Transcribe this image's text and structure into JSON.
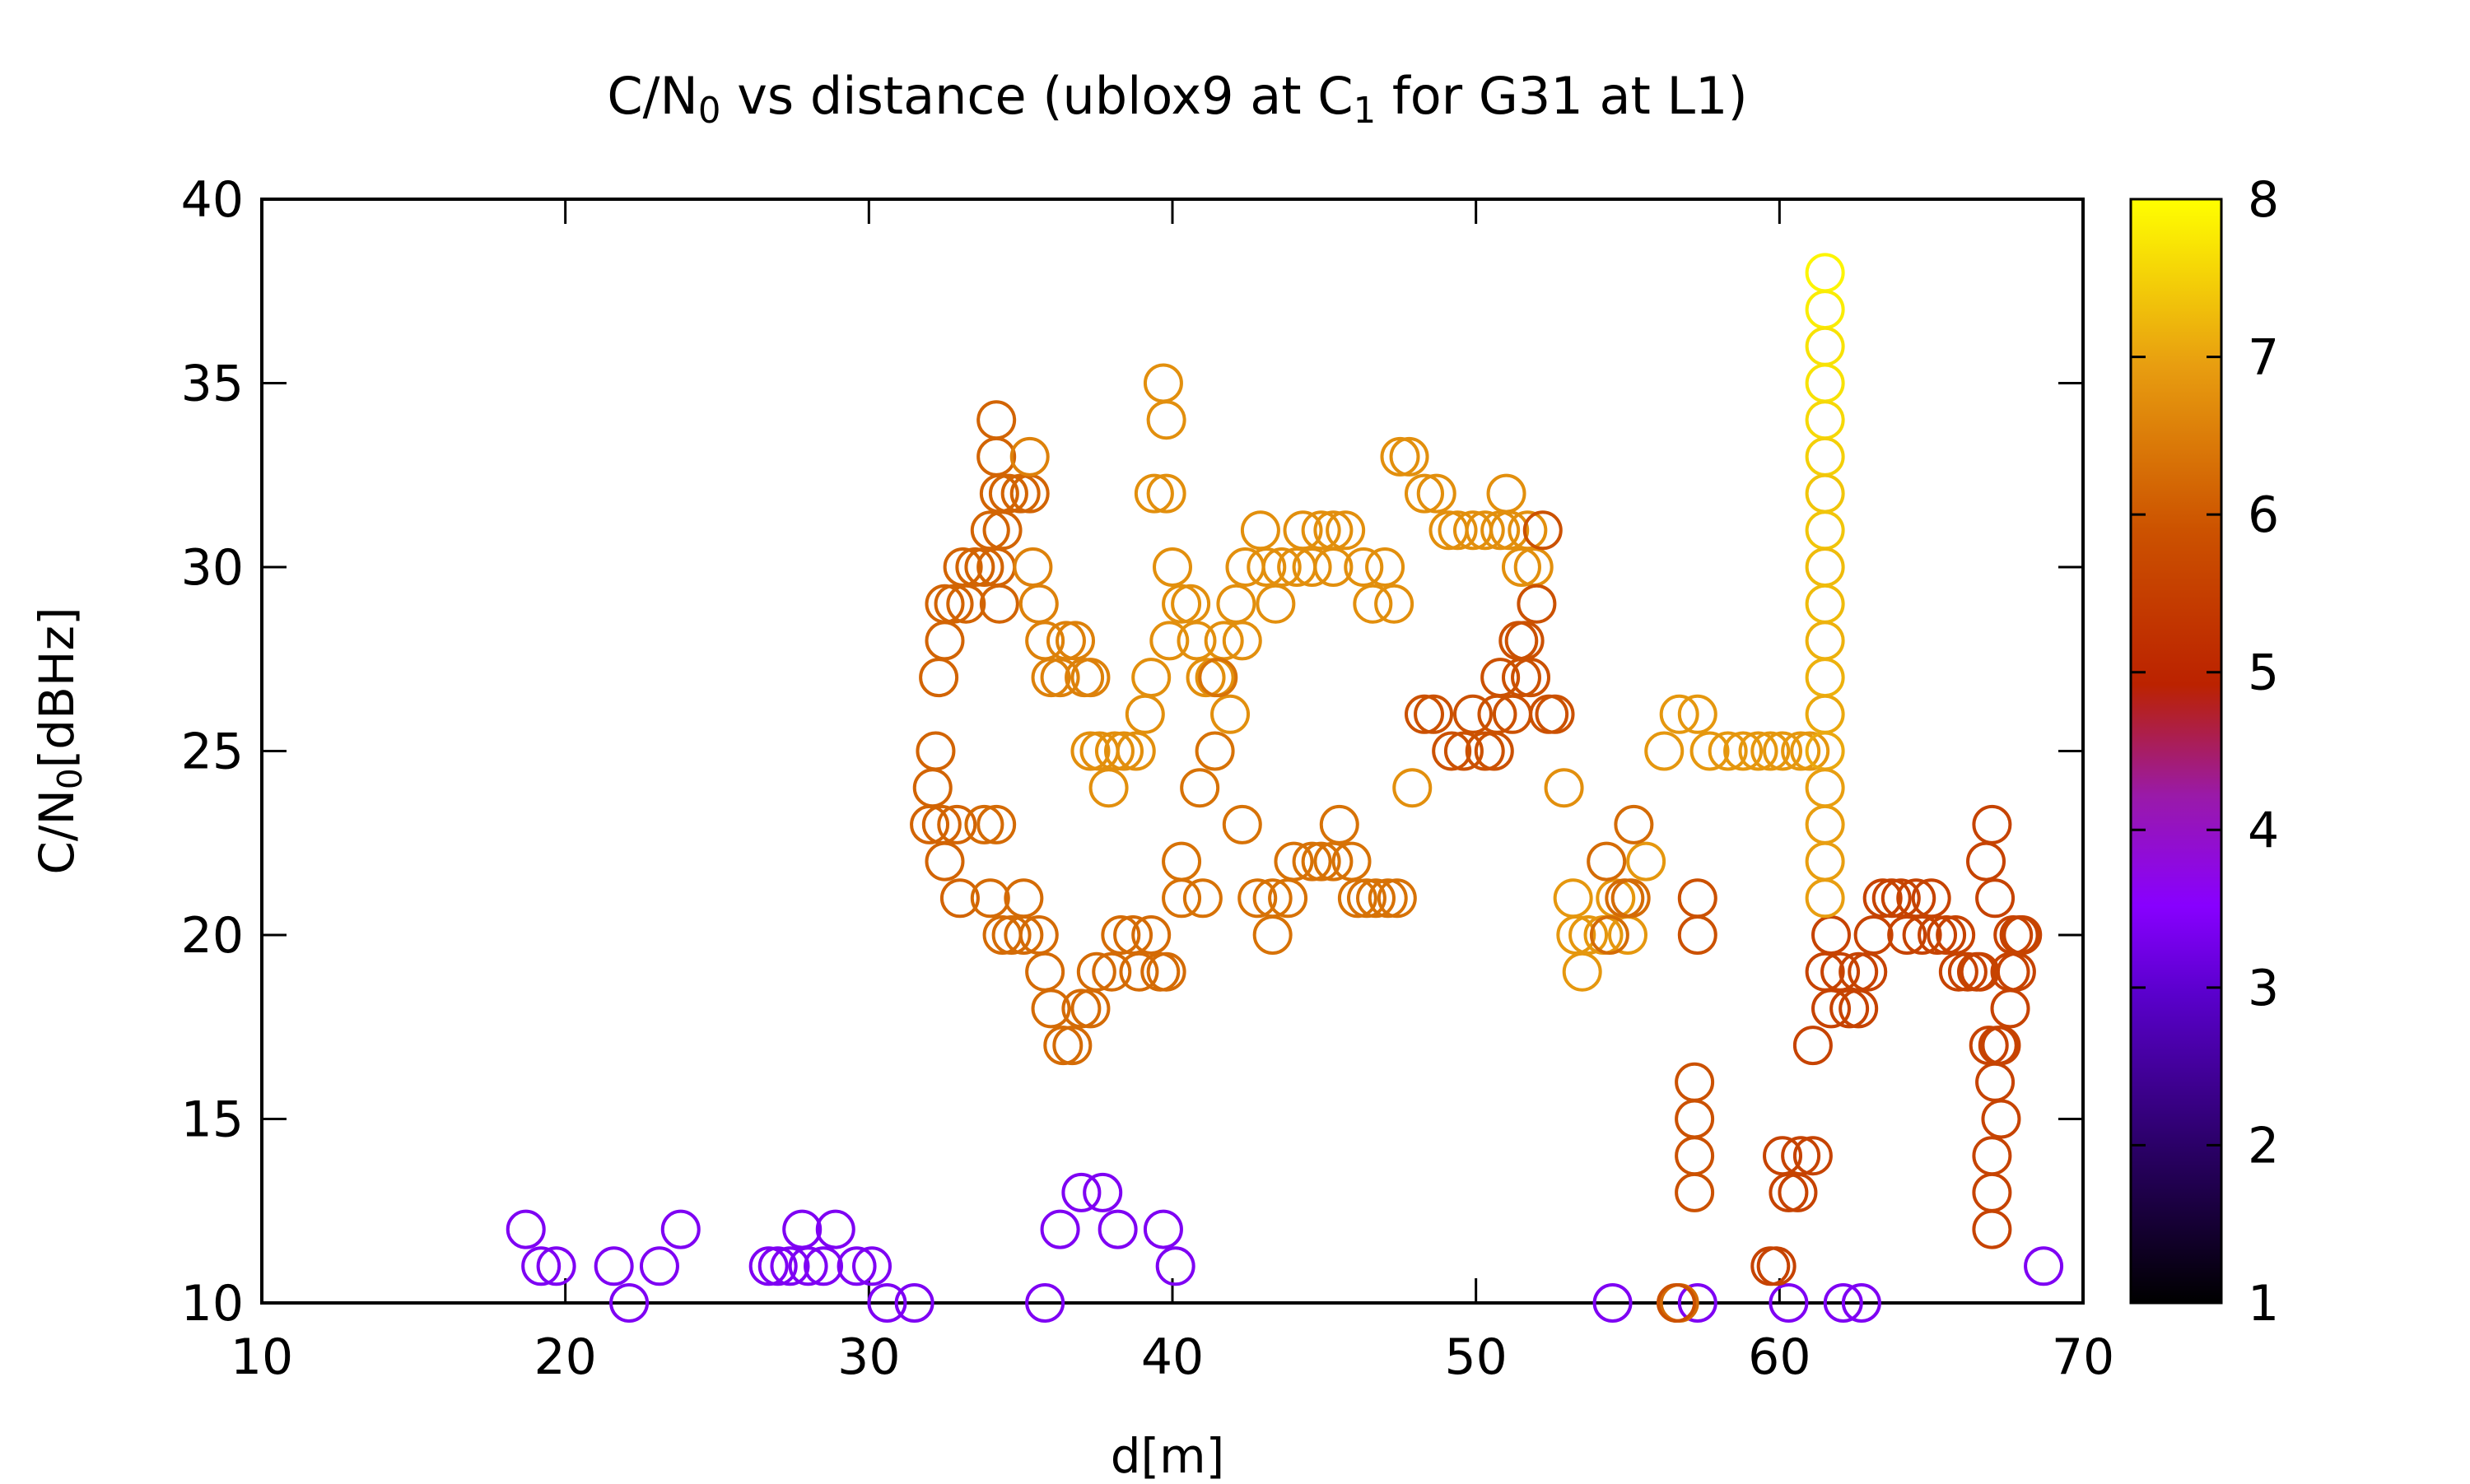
{
  "chart_data": {
    "type": "scatter",
    "title": {
      "pre": "C/N",
      "sub1": "0",
      "mid": " vs distance (ublox9 at C",
      "sub2": "1",
      "post": " for G31 at L1)"
    },
    "xlabel": "d[m]",
    "ylabel": {
      "pre": "C/N",
      "sub": "0",
      "post": "[dBHz]"
    },
    "xlim": [
      10,
      70
    ],
    "ylim": [
      10,
      40
    ],
    "x_ticks": [
      10,
      20,
      30,
      40,
      50,
      60,
      70
    ],
    "y_ticks": [
      10,
      15,
      20,
      25,
      30,
      35,
      40
    ],
    "colorbar": {
      "range": [
        1,
        8
      ],
      "ticks": [
        1,
        2,
        3,
        4,
        5,
        6,
        7,
        8
      ],
      "palette": "black-blue-red-yellow"
    },
    "grid": false,
    "marker": "open-circle",
    "points": [
      [
        18.7,
        12,
        3.2
      ],
      [
        19.2,
        11,
        3.2
      ],
      [
        19.7,
        11,
        3.2
      ],
      [
        21.6,
        11,
        3.2
      ],
      [
        22.1,
        10,
        3.2
      ],
      [
        23.1,
        11,
        3.2
      ],
      [
        23.8,
        12,
        3.2
      ],
      [
        26.7,
        11,
        3.2
      ],
      [
        27.0,
        11,
        3.2
      ],
      [
        27.4,
        11,
        3.2
      ],
      [
        27.8,
        12,
        3.2
      ],
      [
        28.0,
        11,
        3.2
      ],
      [
        28.5,
        11,
        3.2
      ],
      [
        28.9,
        12,
        3.2
      ],
      [
        29.6,
        11,
        3.2
      ],
      [
        30.1,
        11,
        3.2
      ],
      [
        30.6,
        10,
        3.2
      ],
      [
        31.5,
        10,
        3.2
      ],
      [
        35.8,
        10,
        3.2
      ],
      [
        36.3,
        12,
        3.2
      ],
      [
        37.0,
        13,
        3.2
      ],
      [
        37.7,
        13,
        3.2
      ],
      [
        38.2,
        12,
        3.2
      ],
      [
        39.7,
        12,
        3.2
      ],
      [
        40.1,
        11,
        3.2
      ],
      [
        54.5,
        10,
        3.2
      ],
      [
        57.3,
        10,
        3.2
      ],
      [
        60.3,
        10,
        3.2
      ],
      [
        62.1,
        10,
        3.2
      ],
      [
        62.7,
        10,
        3.2
      ],
      [
        68.7,
        11,
        3.2
      ],
      [
        32.2,
        25,
        6.2
      ],
      [
        32.1,
        24,
        6.2
      ],
      [
        32.0,
        23,
        6.2
      ],
      [
        32.4,
        23,
        6.2
      ],
      [
        32.9,
        23,
        6.2
      ],
      [
        32.5,
        22,
        6.2
      ],
      [
        33.0,
        21,
        6.2
      ],
      [
        32.3,
        27,
        6.2
      ],
      [
        32.5,
        28,
        6.2
      ],
      [
        32.5,
        29,
        6.2
      ],
      [
        32.8,
        29,
        6.2
      ],
      [
        33.2,
        29,
        6.2
      ],
      [
        33.1,
        30,
        6.2
      ],
      [
        33.5,
        30,
        6.2
      ],
      [
        33.8,
        30,
        6.2
      ],
      [
        34.2,
        30,
        6.2
      ],
      [
        34.3,
        29,
        6.2
      ],
      [
        34.0,
        31,
        6.2
      ],
      [
        34.4,
        31,
        6.2
      ],
      [
        34.3,
        32,
        6.2
      ],
      [
        34.6,
        32,
        6.2
      ],
      [
        35.0,
        32,
        6.2
      ],
      [
        35.3,
        32,
        6.2
      ],
      [
        34.2,
        33,
        6.2
      ],
      [
        34.2,
        34,
        6.2
      ],
      [
        35.3,
        33,
        6.6
      ],
      [
        35.4,
        30,
        6.6
      ],
      [
        35.6,
        29,
        6.6
      ],
      [
        35.8,
        28,
        6.6
      ],
      [
        36.0,
        27,
        6.6
      ],
      [
        36.3,
        27,
        6.6
      ],
      [
        36.5,
        28,
        6.6
      ],
      [
        36.8,
        28,
        6.6
      ],
      [
        37.1,
        27,
        6.6
      ],
      [
        37.3,
        27,
        6.6
      ],
      [
        33.8,
        23,
        6.3
      ],
      [
        34.2,
        23,
        6.3
      ],
      [
        34.0,
        21,
        6.3
      ],
      [
        34.4,
        20,
        6.3
      ],
      [
        34.7,
        20,
        6.3
      ],
      [
        35.1,
        21,
        6.3
      ],
      [
        35.1,
        20,
        6.3
      ],
      [
        35.6,
        20,
        6.3
      ],
      [
        35.8,
        19,
        6.3
      ],
      [
        36.0,
        18,
        6.3
      ],
      [
        36.4,
        17,
        6.3
      ],
      [
        36.7,
        17,
        6.3
      ],
      [
        37.0,
        18,
        6.3
      ],
      [
        37.3,
        18,
        6.3
      ],
      [
        37.5,
        19,
        6.3
      ],
      [
        38.0,
        19,
        6.3
      ],
      [
        38.3,
        20,
        6.3
      ],
      [
        38.7,
        20,
        6.3
      ],
      [
        38.9,
        19,
        6.3
      ],
      [
        39.3,
        20,
        6.3
      ],
      [
        39.6,
        19,
        6.3
      ],
      [
        39.8,
        19,
        6.3
      ],
      [
        37.3,
        25,
        6.8
      ],
      [
        37.6,
        25,
        6.8
      ],
      [
        37.9,
        24,
        6.8
      ],
      [
        38.1,
        25,
        6.8
      ],
      [
        38.4,
        25,
        6.8
      ],
      [
        38.8,
        25,
        6.8
      ],
      [
        39.1,
        26,
        6.8
      ],
      [
        39.3,
        27,
        6.8
      ],
      [
        39.4,
        32,
        6.8
      ],
      [
        39.7,
        35,
        6.8
      ],
      [
        39.8,
        34,
        6.8
      ],
      [
        39.8,
        32,
        6.8
      ],
      [
        40.0,
        30,
        6.8
      ],
      [
        39.9,
        28,
        6.8
      ],
      [
        40.3,
        29,
        6.8
      ],
      [
        40.6,
        29,
        6.8
      ],
      [
        40.8,
        28,
        6.8
      ],
      [
        41.1,
        27,
        6.8
      ],
      [
        41.4,
        27,
        6.8
      ],
      [
        41.7,
        28,
        6.8
      ],
      [
        41.9,
        26,
        6.8
      ],
      [
        42.1,
        29,
        6.8
      ],
      [
        42.3,
        28,
        6.8
      ],
      [
        42.4,
        30,
        6.8
      ],
      [
        42.9,
        31,
        6.8
      ],
      [
        43.1,
        30,
        6.8
      ],
      [
        43.4,
        29,
        6.8
      ],
      [
        43.6,
        30,
        6.8
      ],
      [
        44.1,
        30,
        6.8
      ],
      [
        44.3,
        31,
        6.8
      ],
      [
        44.6,
        30,
        6.8
      ],
      [
        44.9,
        31,
        6.8
      ],
      [
        45.3,
        31,
        6.8
      ],
      [
        45.3,
        30,
        6.8
      ],
      [
        45.7,
        31,
        6.8
      ],
      [
        46.3,
        30,
        6.8
      ],
      [
        46.6,
        29,
        6.8
      ],
      [
        47.0,
        30,
        6.8
      ],
      [
        47.3,
        29,
        6.8
      ],
      [
        47.5,
        33,
        6.8
      ],
      [
        47.8,
        33,
        6.8
      ],
      [
        48.3,
        32,
        6.8
      ],
      [
        48.7,
        32,
        6.8
      ],
      [
        49.1,
        31,
        6.8
      ],
      [
        49.4,
        31,
        6.8
      ],
      [
        49.9,
        31,
        6.8
      ],
      [
        50.3,
        31,
        6.8
      ],
      [
        50.8,
        31,
        6.8
      ],
      [
        51.1,
        31,
        6.8
      ],
      [
        51.5,
        30,
        6.8
      ],
      [
        51.7,
        31,
        6.8
      ],
      [
        51.9,
        30,
        6.8
      ],
      [
        51.0,
        32,
        6.8
      ],
      [
        47.9,
        24,
        6.8
      ],
      [
        52.9,
        24,
        6.8
      ],
      [
        40.3,
        21,
        6.4
      ],
      [
        40.3,
        22,
        6.4
      ],
      [
        41.0,
        21,
        6.4
      ],
      [
        40.9,
        24,
        6.4
      ],
      [
        41.4,
        25,
        6.4
      ],
      [
        41.5,
        27,
        6.4
      ],
      [
        42.3,
        23,
        6.4
      ],
      [
        42.8,
        21,
        6.4
      ],
      [
        43.3,
        21,
        6.4
      ],
      [
        43.3,
        20,
        6.4
      ],
      [
        43.8,
        21,
        6.4
      ],
      [
        44.0,
        22,
        6.4
      ],
      [
        44.6,
        22,
        6.4
      ],
      [
        44.9,
        22,
        6.4
      ],
      [
        45.3,
        22,
        6.4
      ],
      [
        45.5,
        23,
        6.4
      ],
      [
        45.9,
        22,
        6.4
      ],
      [
        46.1,
        21,
        6.4
      ],
      [
        46.4,
        21,
        6.4
      ],
      [
        46.7,
        21,
        6.4
      ],
      [
        47.1,
        21,
        6.4
      ],
      [
        47.4,
        21,
        6.4
      ],
      [
        48.3,
        26,
        5.9
      ],
      [
        48.6,
        26,
        5.9
      ],
      [
        49.2,
        25,
        5.9
      ],
      [
        49.6,
        25,
        5.9
      ],
      [
        49.9,
        26,
        5.9
      ],
      [
        50.3,
        25,
        5.9
      ],
      [
        50.6,
        25,
        5.9
      ],
      [
        50.7,
        26,
        5.9
      ],
      [
        50.8,
        27,
        5.9
      ],
      [
        51.2,
        26,
        5.9
      ],
      [
        51.5,
        27,
        5.9
      ],
      [
        51.4,
        28,
        5.9
      ],
      [
        51.6,
        28,
        5.9
      ],
      [
        51.8,
        27,
        5.9
      ],
      [
        52.0,
        29,
        5.9
      ],
      [
        52.2,
        31,
        5.9
      ],
      [
        52.4,
        26,
        5.9
      ],
      [
        52.6,
        26,
        5.9
      ],
      [
        53.2,
        21,
        6.9
      ],
      [
        53.3,
        20,
        6.9
      ],
      [
        53.5,
        19,
        6.9
      ],
      [
        53.7,
        20,
        6.9
      ],
      [
        54.2,
        20,
        6.9
      ],
      [
        54.6,
        21,
        6.9
      ],
      [
        55.0,
        20,
        6.9
      ],
      [
        55.6,
        22,
        6.9
      ],
      [
        56.2,
        25,
        6.9
      ],
      [
        56.7,
        26,
        6.9
      ],
      [
        57.3,
        26,
        6.9
      ],
      [
        57.7,
        25,
        6.9
      ],
      [
        58.3,
        25,
        6.9
      ],
      [
        58.8,
        25,
        6.9
      ],
      [
        59.3,
        25,
        6.9
      ],
      [
        59.7,
        25,
        6.9
      ],
      [
        60.1,
        25,
        6.9
      ],
      [
        60.7,
        25,
        6.9
      ],
      [
        61.0,
        25,
        6.9
      ],
      [
        54.3,
        22,
        6.3
      ],
      [
        54.4,
        20,
        6.3
      ],
      [
        54.9,
        21,
        6.3
      ],
      [
        55.1,
        21,
        6.3
      ],
      [
        55.2,
        23,
        6.3
      ],
      [
        56.7,
        10,
        6.3
      ],
      [
        57.3,
        21,
        5.9
      ],
      [
        57.3,
        20,
        5.9
      ],
      [
        57.2,
        16,
        5.9
      ],
      [
        57.2,
        15,
        5.9
      ],
      [
        57.2,
        14,
        5.9
      ],
      [
        57.2,
        13,
        5.9
      ],
      [
        56.6,
        10,
        5.9
      ],
      [
        59.7,
        11,
        5.6
      ],
      [
        59.9,
        11,
        5.6
      ],
      [
        60.1,
        14,
        5.6
      ],
      [
        60.3,
        13,
        5.6
      ],
      [
        60.6,
        13,
        5.6
      ],
      [
        60.7,
        14,
        5.6
      ],
      [
        61.1,
        14,
        5.6
      ],
      [
        61.1,
        17,
        5.6
      ],
      [
        61.5,
        19,
        5.6
      ],
      [
        61.7,
        20,
        5.6
      ],
      [
        61.7,
        18,
        5.6
      ],
      [
        62.0,
        19,
        5.6
      ],
      [
        62.3,
        18,
        5.6
      ],
      [
        62.6,
        18,
        5.6
      ],
      [
        62.6,
        19,
        5.6
      ],
      [
        62.9,
        19,
        5.6
      ],
      [
        63.1,
        20,
        5.6
      ],
      [
        63.4,
        21,
        5.6
      ],
      [
        63.7,
        21,
        5.6
      ],
      [
        64.0,
        21,
        5.6
      ],
      [
        64.2,
        20,
        5.6
      ],
      [
        64.5,
        21,
        5.6
      ],
      [
        64.7,
        20,
        5.6
      ],
      [
        65.0,
        21,
        5.6
      ],
      [
        65.2,
        20,
        5.6
      ],
      [
        65.5,
        20,
        5.6
      ],
      [
        65.8,
        20,
        5.6
      ],
      [
        65.9,
        19,
        5.6
      ],
      [
        66.2,
        19,
        5.6
      ],
      [
        66.5,
        19,
        5.6
      ],
      [
        66.6,
        19,
        5.6
      ],
      [
        66.8,
        22,
        5.6
      ],
      [
        67.0,
        23,
        5.6
      ],
      [
        67.1,
        21,
        5.6
      ],
      [
        66.9,
        17,
        5.6
      ],
      [
        67.1,
        16,
        5.6
      ],
      [
        67.2,
        17,
        5.6
      ],
      [
        67.3,
        17,
        5.6
      ],
      [
        67.3,
        15,
        5.6
      ],
      [
        67.0,
        14,
        5.6
      ],
      [
        67.0,
        13,
        5.6
      ],
      [
        67.0,
        12,
        5.6
      ],
      [
        67.6,
        18,
        5.6
      ],
      [
        67.6,
        19,
        5.6
      ],
      [
        67.8,
        19,
        5.6
      ],
      [
        67.7,
        20,
        5.6
      ],
      [
        67.9,
        20,
        5.6
      ],
      [
        68.0,
        20,
        5.6
      ],
      [
        61.5,
        38,
        7.9
      ],
      [
        61.5,
        37,
        7.8
      ],
      [
        61.5,
        36,
        7.7
      ],
      [
        61.5,
        35,
        7.7
      ],
      [
        61.5,
        34,
        7.6
      ],
      [
        61.5,
        33,
        7.5
      ],
      [
        61.5,
        32,
        7.4
      ],
      [
        61.5,
        31,
        7.4
      ],
      [
        61.5,
        30,
        7.3
      ],
      [
        61.5,
        29,
        7.3
      ],
      [
        61.5,
        28,
        7.2
      ],
      [
        61.5,
        27,
        7.2
      ],
      [
        61.5,
        26,
        7.1
      ],
      [
        61.5,
        25,
        7.1
      ],
      [
        61.5,
        24,
        7.0
      ],
      [
        61.5,
        23,
        7.0
      ],
      [
        61.5,
        22,
        7.0
      ],
      [
        61.5,
        21,
        7.0
      ]
    ]
  }
}
